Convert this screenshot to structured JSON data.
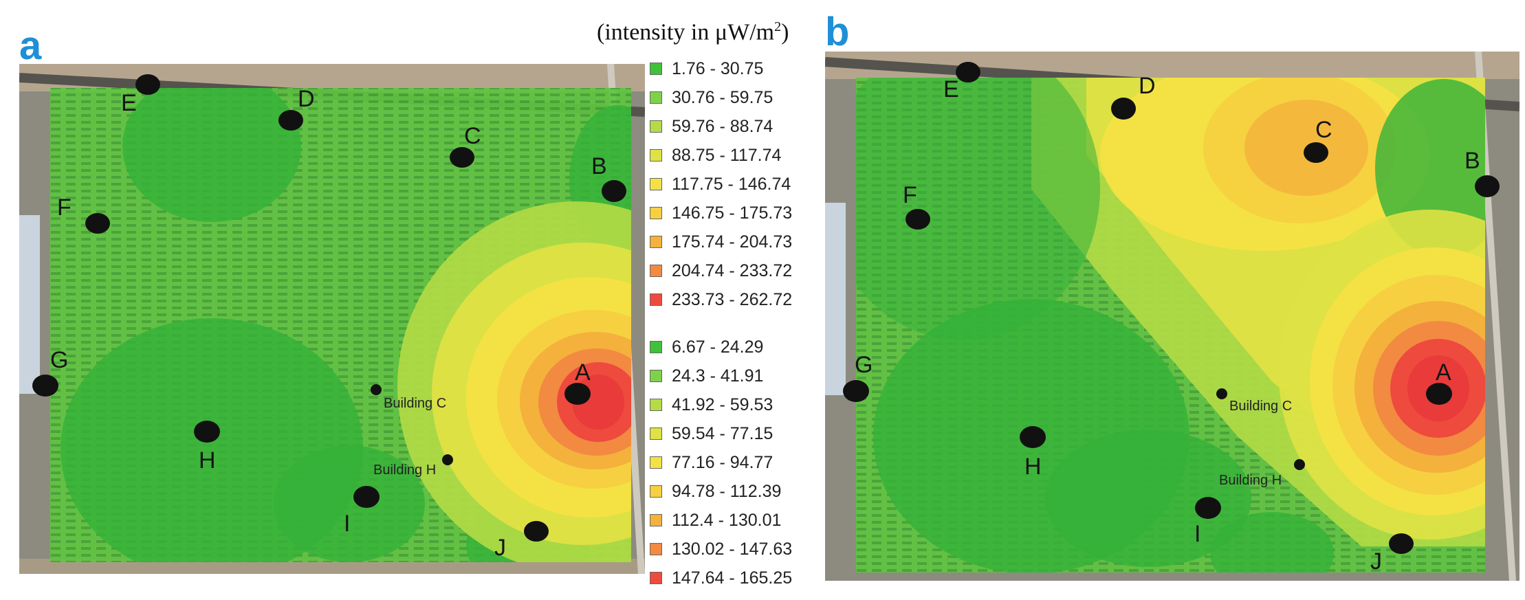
{
  "panels": [
    {
      "letter": "a"
    },
    {
      "letter": "b"
    }
  ],
  "legend": {
    "title_prefix": "(intensity in μW/m",
    "title_exp": "2",
    "title_suffix": ")",
    "group_a": [
      {
        "label": "1.76 - 30.75",
        "color": "#3fc23a"
      },
      {
        "label": "30.76 - 59.75",
        "color": "#7ed24a"
      },
      {
        "label": "59.76 - 88.74",
        "color": "#b4dc46"
      },
      {
        "label": "88.75 - 117.74",
        "color": "#dfe245"
      },
      {
        "label": "117.75 - 146.74",
        "color": "#f4e244"
      },
      {
        "label": "146.75 - 175.73",
        "color": "#f6d040"
      },
      {
        "label": "175.74 - 204.73",
        "color": "#f4b13c"
      },
      {
        "label": "204.74 - 233.72",
        "color": "#f28a42"
      },
      {
        "label": "233.73 - 262.72",
        "color": "#ee4a3e"
      }
    ],
    "group_b": [
      {
        "label": "6.67 - 24.29",
        "color": "#3fc23a"
      },
      {
        "label": "24.3 - 41.91",
        "color": "#7ed24a"
      },
      {
        "label": "41.92 - 59.53",
        "color": "#b4dc46"
      },
      {
        "label": "59.54 - 77.15",
        "color": "#dfe245"
      },
      {
        "label": "77.16 - 94.77",
        "color": "#f4e244"
      },
      {
        "label": "94.78 - 112.39",
        "color": "#f6d040"
      },
      {
        "label": "112.4 - 130.01",
        "color": "#f4b13c"
      },
      {
        "label": "130.02 - 147.63",
        "color": "#f28a42"
      },
      {
        "label": "147.64 - 165.25",
        "color": "#ee4a3e"
      }
    ]
  },
  "points": {
    "A": "A",
    "B": "B",
    "C": "C",
    "D": "D",
    "E": "E",
    "F": "F",
    "G": "G",
    "H": "H",
    "I": "I",
    "J": "J"
  },
  "buildings": {
    "building_c": "Building C",
    "building_h": "Building H"
  }
}
